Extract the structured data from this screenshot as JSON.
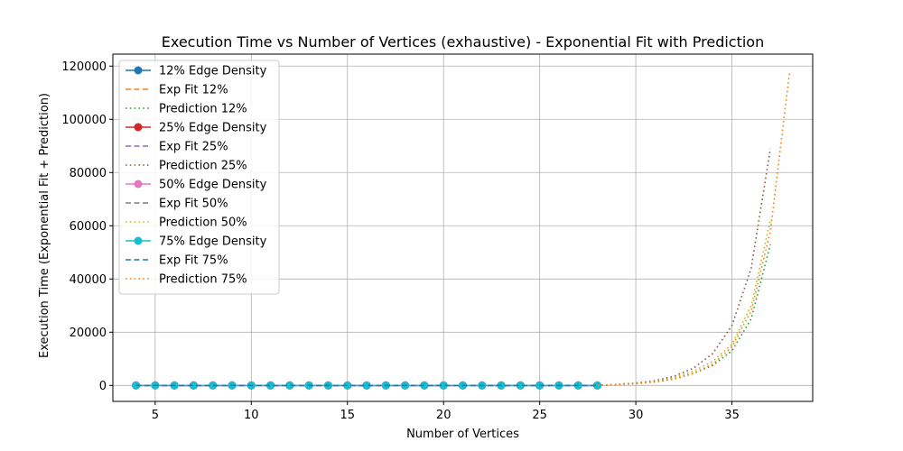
{
  "chart_data": {
    "type": "line",
    "title": "Execution Time vs Number of Vertices (exhaustive) - Exponential Fit with Prediction",
    "xlabel": "Number of Vertices",
    "ylabel": "Execution Time (Exponential Fit + Prediction)",
    "xlim": [
      2.8,
      39.2
    ],
    "ylim": [
      -6000,
      124500
    ],
    "xticks": [
      5,
      10,
      15,
      20,
      25,
      30,
      35
    ],
    "xtick_labels": [
      "5",
      "10",
      "15",
      "20",
      "25",
      "30",
      "35"
    ],
    "yticks": [
      0,
      20000,
      40000,
      60000,
      80000,
      100000,
      120000
    ],
    "ytick_labels": [
      "0",
      "20000",
      "40000",
      "60000",
      "80000",
      "100000",
      "120000"
    ],
    "grid": true,
    "legend_position": "top-left",
    "series": [
      {
        "name": "12% Edge Density",
        "kind": "data",
        "color": "#1f77b4",
        "x": [
          4,
          5,
          6,
          7,
          8,
          9,
          10,
          11,
          12,
          13,
          14,
          15,
          16,
          17,
          18,
          19,
          20,
          21,
          22,
          23,
          24,
          25,
          26,
          27,
          28
        ],
        "y": [
          0,
          0,
          0,
          0,
          0,
          0,
          0,
          0,
          0,
          0,
          0,
          0,
          0,
          0,
          0,
          0,
          0,
          0,
          0,
          0,
          0,
          0,
          0,
          0,
          0
        ]
      },
      {
        "name": "Exp Fit 12%",
        "kind": "fit",
        "color": "#ff7f0e",
        "x": [
          4,
          28
        ],
        "y": [
          0,
          0
        ]
      },
      {
        "name": "Prediction 12%",
        "kind": "prediction",
        "color": "#2ca02c",
        "x": [
          28,
          29,
          30,
          31,
          32,
          33,
          34,
          35,
          36,
          37
        ],
        "y": [
          0,
          300,
          700,
          1300,
          2400,
          4500,
          7500,
          13000,
          25000,
          53000
        ]
      },
      {
        "name": "25% Edge Density",
        "kind": "data",
        "color": "#d62728",
        "x": [
          4,
          5,
          6,
          7,
          8,
          9,
          10,
          11,
          12,
          13,
          14,
          15,
          16,
          17,
          18,
          19,
          20,
          21,
          22,
          23,
          24,
          25,
          26,
          27,
          28
        ],
        "y": [
          0,
          0,
          0,
          0,
          0,
          0,
          0,
          0,
          0,
          0,
          0,
          0,
          0,
          0,
          0,
          0,
          0,
          0,
          0,
          0,
          0,
          0,
          0,
          0,
          0
        ]
      },
      {
        "name": "Exp Fit 25%",
        "kind": "fit",
        "color": "#9467bd",
        "x": [
          4,
          28
        ],
        "y": [
          0,
          0
        ]
      },
      {
        "name": "Prediction 25%",
        "kind": "prediction",
        "color": "#8c564b",
        "x": [
          28,
          29,
          30,
          31,
          32,
          33,
          34,
          35,
          36,
          37
        ],
        "y": [
          0,
          400,
          900,
          1800,
          3500,
          6500,
          12000,
          22500,
          44000,
          89000
        ]
      },
      {
        "name": "50% Edge Density",
        "kind": "data",
        "color": "#e377c2",
        "x": [
          4,
          5,
          6,
          7,
          8,
          9,
          10,
          11,
          12,
          13,
          14,
          15,
          16,
          17,
          18,
          19,
          20,
          21,
          22,
          23,
          24,
          25,
          26,
          27,
          28
        ],
        "y": [
          0,
          0,
          0,
          0,
          0,
          0,
          0,
          0,
          0,
          0,
          0,
          0,
          0,
          0,
          0,
          0,
          0,
          0,
          0,
          0,
          0,
          0,
          0,
          0,
          0
        ]
      },
      {
        "name": "Exp Fit 50%",
        "kind": "fit",
        "color": "#7f7f7f",
        "x": [
          4,
          28
        ],
        "y": [
          0,
          0
        ]
      },
      {
        "name": "Prediction 50%",
        "kind": "prediction",
        "color": "#bcbd22",
        "x": [
          28,
          29,
          30,
          31,
          32,
          33,
          34,
          35,
          36,
          37
        ],
        "y": [
          0,
          350,
          800,
          1500,
          2900,
          5400,
          9000,
          15500,
          30000,
          62000
        ]
      },
      {
        "name": "75% Edge Density",
        "kind": "data",
        "color": "#17becf",
        "x": [
          4,
          5,
          6,
          7,
          8,
          9,
          10,
          11,
          12,
          13,
          14,
          15,
          16,
          17,
          18,
          19,
          20,
          21,
          22,
          23,
          24,
          25,
          26,
          27,
          28
        ],
        "y": [
          0,
          0,
          0,
          0,
          0,
          0,
          0,
          0,
          0,
          0,
          0,
          0,
          0,
          0,
          0,
          0,
          0,
          0,
          0,
          0,
          0,
          0,
          0,
          0,
          0
        ]
      },
      {
        "name": "Exp Fit 75%",
        "kind": "fit",
        "color": "#1f77b4",
        "x": [
          4,
          28
        ],
        "y": [
          0,
          0
        ]
      },
      {
        "name": "Prediction 75%",
        "kind": "prediction",
        "color": "#ff7f0e",
        "x": [
          28,
          29,
          30,
          31,
          32,
          33,
          34,
          35,
          36,
          37,
          38
        ],
        "y": [
          0,
          300,
          700,
          1300,
          2500,
          4600,
          8000,
          14500,
          28000,
          58000,
          118000
        ]
      }
    ]
  }
}
